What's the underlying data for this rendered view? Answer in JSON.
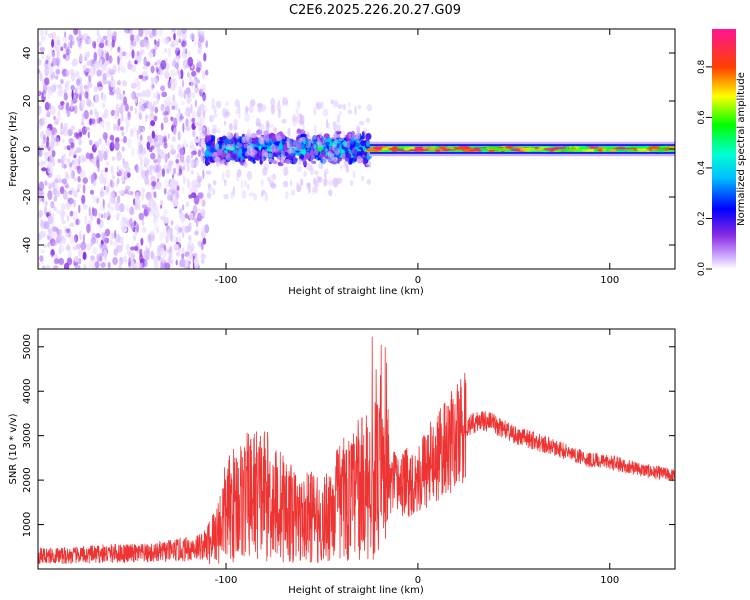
{
  "title": "C2E6.2025.226.20.27.G09",
  "chart_data": [
    {
      "type": "heatmap",
      "xlabel": "Height of straight line (km)",
      "ylabel": "Frequency (Hz)",
      "xlim": [
        -198,
        134
      ],
      "ylim": [
        -50,
        50
      ],
      "x_ticks": [
        -100,
        0,
        100
      ],
      "y_ticks": [
        -40,
        -20,
        0,
        20,
        40
      ],
      "x_tick_labels": [
        "-100",
        "0",
        "100"
      ],
      "y_tick_labels": [
        "-40",
        "-20",
        "0",
        "20",
        "40"
      ],
      "grid": false,
      "colorbar": {
        "label": "Normalized spectral amplitude",
        "range": [
          0,
          0.95
        ],
        "ticks": [
          0.0,
          0.2,
          0.4,
          0.6,
          0.8
        ],
        "tick_labels": [
          "0.0",
          "0.2",
          "0.4",
          "0.6",
          "0.8"
        ],
        "colormap": [
          "#ffffff",
          "#8a2be2",
          "#0000ff",
          "#00ffff",
          "#00ff00",
          "#ffff00",
          "#ff8000",
          "#ff0000",
          "#ff1493"
        ]
      },
      "regions": [
        {
          "x_range": [
            -198,
            -110
          ],
          "freq_range": [
            -50,
            50
          ],
          "amplitude": [
            0.02,
            0.15
          ]
        },
        {
          "x_range": [
            -110,
            -25
          ],
          "freq_range": [
            -8,
            8
          ],
          "amplitude": [
            0.1,
            0.5
          ]
        },
        {
          "x_range": [
            -25,
            134
          ],
          "freq_range": [
            -3,
            3
          ],
          "amplitude": [
            0.5,
            0.95
          ]
        }
      ]
    },
    {
      "type": "line",
      "xlabel": "Height of straight line (km)",
      "ylabel": "SNR (10 * v/v)",
      "xlim": [
        -198,
        134
      ],
      "ylim": [
        0,
        5400
      ],
      "x_ticks": [
        -100,
        0,
        100
      ],
      "y_ticks": [
        1000,
        2000,
        3000,
        4000,
        5000
      ],
      "x_tick_labels": [
        "-100",
        "0",
        "100"
      ],
      "y_tick_labels": [
        "1000",
        "2000",
        "3000",
        "4000",
        "5000"
      ],
      "grid": false,
      "series": [
        {
          "color": "#ee3333",
          "x": [
            -198,
            -180,
            -160,
            -140,
            -120,
            -110,
            -105,
            -100,
            -95,
            -90,
            -85,
            -80,
            -75,
            -70,
            -65,
            -60,
            -55,
            -50,
            -45,
            -40,
            -35,
            -30,
            -25,
            -20,
            -15,
            -10,
            -5,
            0,
            5,
            10,
            15,
            20,
            25,
            30,
            35,
            40,
            45,
            50,
            60,
            70,
            80,
            90,
            100,
            110,
            120,
            134
          ],
          "y": [
            300,
            300,
            350,
            350,
            450,
            550,
            800,
            1300,
            1500,
            1600,
            1700,
            1700,
            1500,
            1400,
            1200,
            1100,
            1200,
            1000,
            1400,
            1500,
            1600,
            1800,
            2000,
            2000,
            1900,
            1900,
            1950,
            2050,
            2300,
            2500,
            2750,
            2950,
            3200,
            3300,
            3350,
            3250,
            3150,
            3000,
            2900,
            2750,
            2600,
            2450,
            2400,
            2300,
            2200,
            2100
          ]
        }
      ]
    }
  ]
}
